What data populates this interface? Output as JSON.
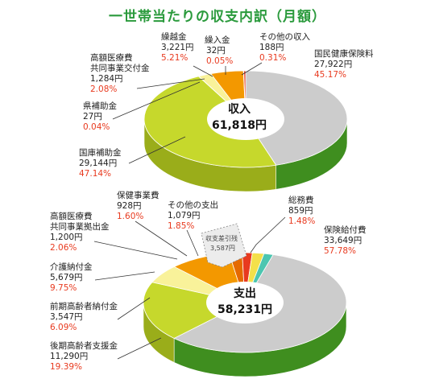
{
  "title": "一世帯当たりの収支内訳（月額）",
  "colors": {
    "title": "#2a9a3c",
    "pct": "#e83a1f",
    "green_dark": "#5cb531",
    "green_side": "#3f8e1f",
    "yellowgreen": "#c6d82c",
    "yellowgreen_side": "#9aad1a",
    "orange": "#f39800",
    "orange_dark": "#e56a00",
    "yellow": "#f4e04a",
    "light_yellow": "#f9f29a",
    "red": "#e83a1f",
    "teal": "#4cc6b0"
  },
  "chart_data": [
    {
      "type": "pie",
      "center_label": "収入",
      "center_value": "61,818円",
      "slices": [
        {
          "name": "国民健康保険料",
          "amount": "27,922円",
          "value": 27922,
          "pct": "45.17%",
          "color": "green"
        },
        {
          "name": "国庫補助金",
          "amount": "29,144円",
          "value": 29144,
          "pct": "47.14%",
          "color": "yellowgreen"
        },
        {
          "name": "県補助金",
          "amount": "27円",
          "value": 27,
          "pct": "0.04%",
          "color": "yellowgreen"
        },
        {
          "name": "高額医療費 共同事業交付金",
          "name_lines": [
            "高額医療費",
            "共同事業交付金"
          ],
          "amount": "1,284円",
          "value": 1284,
          "pct": "2.08%",
          "color": "light_yellow"
        },
        {
          "name": "繰越金",
          "amount": "3,221円",
          "value": 3221,
          "pct": "5.21%",
          "color": "orange"
        },
        {
          "name": "繰入金",
          "amount": "32円",
          "value": 32,
          "pct": "0.05%",
          "color": "orange_dark"
        },
        {
          "name": "その他の収入",
          "amount": "188円",
          "value": 188,
          "pct": "0.31%",
          "color": "red"
        }
      ]
    },
    {
      "type": "pie",
      "center_label": "支出",
      "center_value": "58,231円",
      "slices": [
        {
          "name": "保険給付費",
          "amount": "33,649円",
          "value": 33649,
          "pct": "57.78%",
          "color": "green"
        },
        {
          "name": "後期高齢者支援金",
          "amount": "11,290円",
          "value": 11290,
          "pct": "19.39%",
          "color": "yellowgreen"
        },
        {
          "name": "前期高齢者納付金",
          "amount": "3,547円",
          "value": 3547,
          "pct": "6.09%",
          "color": "light_yellow"
        },
        {
          "name": "介護納付金",
          "amount": "5,679円",
          "value": 5679,
          "pct": "9.75%",
          "color": "orange"
        },
        {
          "name": "高額医療費 共同事業拠出金",
          "name_lines": [
            "高額医療費",
            "共同事業拠出金"
          ],
          "amount": "1,200円",
          "value": 1200,
          "pct": "2.06%",
          "color": "orange_dark"
        },
        {
          "name": "保健事業費",
          "amount": "928円",
          "value": 928,
          "pct": "1.60%",
          "color": "red"
        },
        {
          "name": "その他の支出",
          "amount": "1,079円",
          "value": 1079,
          "pct": "1.85%",
          "color": "yellow"
        },
        {
          "name": "総務費",
          "amount": "859円",
          "value": 859,
          "pct": "1.48%",
          "color": "teal"
        }
      ],
      "annotation": {
        "label": "収支差引残",
        "amount": "3,587円"
      }
    }
  ]
}
